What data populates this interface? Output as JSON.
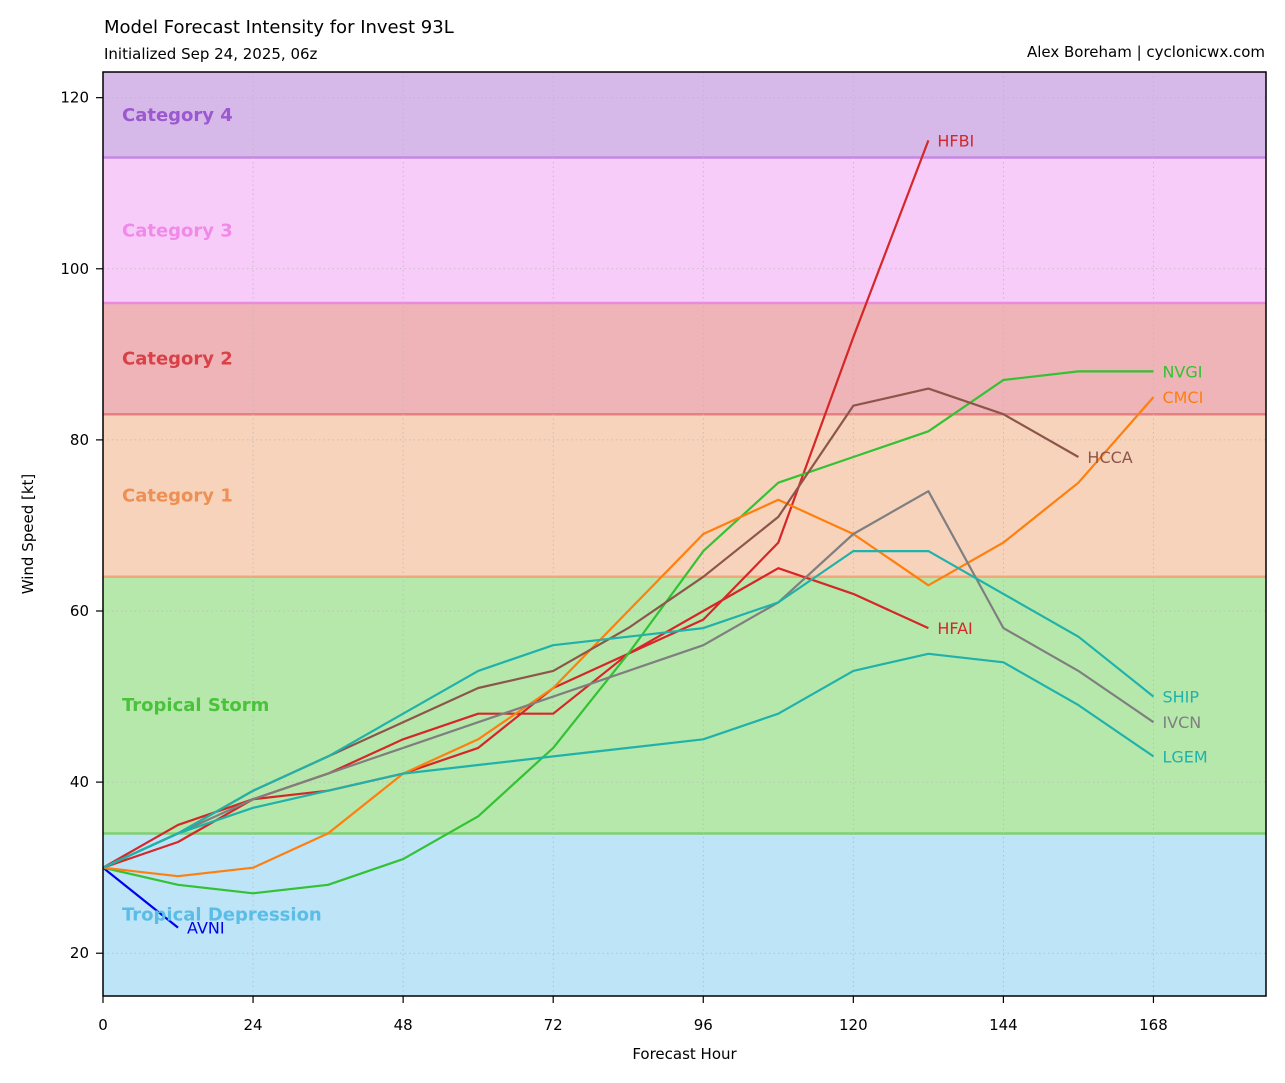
{
  "header": {
    "title": "Model Forecast Intensity for Invest 93L",
    "subtitle": "Initialized Sep 24, 2025, 06z",
    "credit": "Alex Boreham | cyclonicwx.com"
  },
  "chart_data": {
    "type": "line",
    "xlabel": "Forecast Hour",
    "ylabel": "Wind Speed [kt]",
    "xlim": [
      0,
      186
    ],
    "ylim": [
      15,
      123
    ],
    "xticks": [
      0,
      24,
      48,
      72,
      96,
      120,
      144,
      168
    ],
    "yticks": [
      20,
      40,
      60,
      80,
      100,
      120
    ],
    "grid": true,
    "bands": [
      {
        "name": "Tropical Depression",
        "from": 15,
        "to": 34,
        "fill": "#bde4f7",
        "edge": "#bde4f7",
        "label_color": "#5bbce6"
      },
      {
        "name": "Tropical Storm",
        "from": 34,
        "to": 64,
        "fill": "#b6e8ac",
        "edge": "#7fcf74",
        "label_color": "#4ac23c"
      },
      {
        "name": "Category 1",
        "from": 64,
        "to": 83,
        "fill": "#f7d3bb",
        "edge": "#f0a878",
        "label_color": "#ee8f53"
      },
      {
        "name": "Category 2",
        "from": 83,
        "to": 96,
        "fill": "#efb4b7",
        "edge": "#e67f80",
        "label_color": "#d94148"
      },
      {
        "name": "Category 3",
        "from": 96,
        "to": 113,
        "fill": "#f8ccf8",
        "edge": "#e88bdf",
        "label_color": "#f08ae8"
      },
      {
        "name": "Category 4",
        "from": 113,
        "to": 123,
        "fill": "#d6b9e9",
        "edge": "#c488e3",
        "label_color": "#9b59d0"
      }
    ],
    "series": [
      {
        "name": "AVNI",
        "color": "#0000ee",
        "x": [
          0,
          12
        ],
        "y": [
          30,
          23
        ]
      },
      {
        "name": "HFBI",
        "color": "#d62728",
        "x": [
          0,
          12,
          24,
          36,
          48,
          60,
          72,
          84,
          96,
          108,
          120,
          132
        ],
        "y": [
          30,
          33,
          38,
          41,
          45,
          48,
          48,
          55,
          59,
          68,
          92,
          115
        ]
      },
      {
        "name": "HFAI",
        "color": "#d62728",
        "x": [
          0,
          12,
          24,
          36,
          48,
          60,
          72,
          84,
          96,
          108,
          120,
          132
        ],
        "y": [
          30,
          35,
          38,
          39,
          41,
          44,
          51,
          55,
          60,
          65,
          62,
          58
        ]
      },
      {
        "name": "NVGI",
        "color": "#33c233",
        "x": [
          0,
          12,
          24,
          36,
          48,
          60,
          72,
          84,
          96,
          108,
          120,
          132,
          144,
          156,
          168
        ],
        "y": [
          30,
          28,
          27,
          28,
          31,
          36,
          44,
          55,
          67,
          75,
          78,
          81,
          87,
          88,
          88
        ]
      },
      {
        "name": "CMCI",
        "color": "#ff7f0e",
        "x": [
          0,
          12,
          24,
          36,
          48,
          60,
          72,
          84,
          96,
          108,
          120,
          132,
          144,
          156,
          168
        ],
        "y": [
          30,
          29,
          30,
          34,
          41,
          45,
          51,
          60,
          69,
          73,
          69,
          63,
          68,
          75,
          85
        ]
      },
      {
        "name": "HCCA",
        "color": "#8c564b",
        "x": [
          0,
          12,
          24,
          36,
          48,
          60,
          72,
          84,
          96,
          108,
          120,
          132,
          144,
          156
        ],
        "y": [
          30,
          34,
          39,
          43,
          47,
          51,
          53,
          58,
          64,
          71,
          84,
          86,
          83,
          78
        ]
      },
      {
        "name": "IVCN",
        "color": "#7f7f7f",
        "x": [
          0,
          12,
          24,
          36,
          48,
          60,
          72,
          84,
          96,
          108,
          120,
          132,
          144,
          156,
          168
        ],
        "y": [
          30,
          34,
          38,
          41,
          44,
          47,
          50,
          53,
          56,
          61,
          69,
          74,
          58,
          53,
          47
        ]
      },
      {
        "name": "SHIP",
        "color": "#20b2aa",
        "x": [
          0,
          12,
          24,
          36,
          48,
          60,
          72,
          84,
          96,
          108,
          120,
          132,
          144,
          156,
          168
        ],
        "y": [
          30,
          34,
          39,
          43,
          48,
          53,
          56,
          57,
          58,
          61,
          67,
          67,
          62,
          57,
          50
        ]
      },
      {
        "name": "LGEM",
        "color": "#20b2aa",
        "x": [
          0,
          12,
          24,
          36,
          48,
          60,
          72,
          84,
          96,
          108,
          120,
          132,
          144,
          156,
          168
        ],
        "y": [
          30,
          34,
          37,
          39,
          41,
          42,
          43,
          44,
          45,
          48,
          53,
          55,
          54,
          49,
          43
        ]
      }
    ]
  }
}
